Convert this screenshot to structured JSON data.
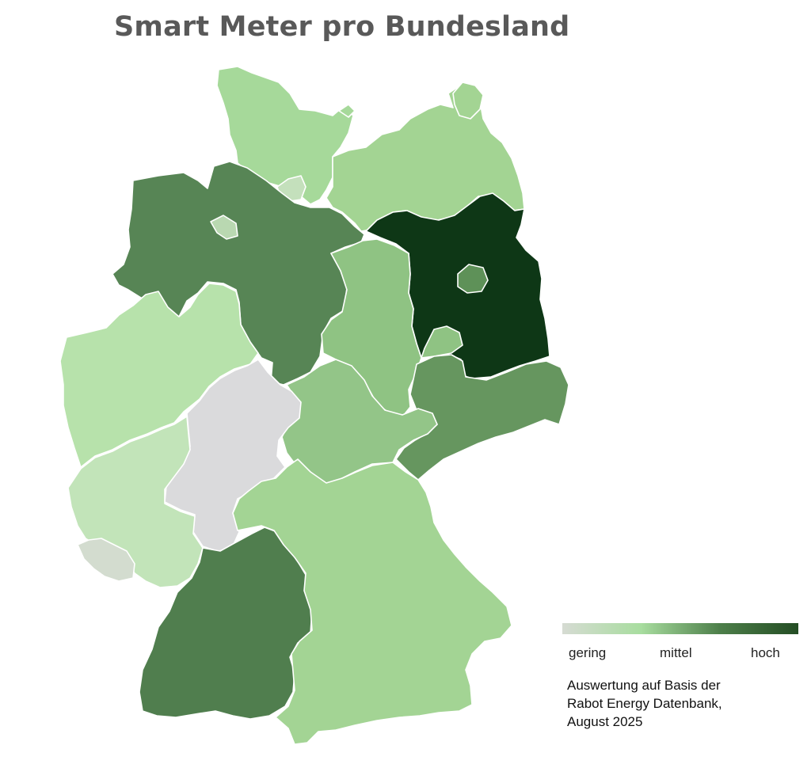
{
  "title": "Smart Meter pro Bundesland",
  "legend": {
    "low_label": "gering",
    "mid_label": "mittel",
    "high_label": "hoch",
    "gradient_colors": [
      "#d6dbd3",
      "#a8dd9f",
      "#4d7f4a",
      "#244d24"
    ]
  },
  "note_lines": [
    "Auswertung auf Basis der",
    "Rabot Energy Datenbank,",
    "August 2025"
  ],
  "states": {
    "schleswig_holstein": {
      "color": "#a6d99a"
    },
    "hamburg": {
      "color": "#c4e0bc"
    },
    "mecklenburg_vorpommern": {
      "color": "#a3d493"
    },
    "niedersachsen": {
      "color": "#578555"
    },
    "bremen": {
      "color": "#b9d8b1"
    },
    "brandenburg": {
      "color": "#0e3716"
    },
    "berlin": {
      "color": "#5e9158"
    },
    "sachsen_anhalt": {
      "color": "#8fc383"
    },
    "nordrhein_westfalen": {
      "color": "#b7e2ab"
    },
    "hessen": {
      "color": "#dadadc"
    },
    "thueringen": {
      "color": "#93c588"
    },
    "sachsen": {
      "color": "#66965f"
    },
    "rheinland_pfalz": {
      "color": "#c2e4b9"
    },
    "saarland": {
      "color": "#d3dccf"
    },
    "baden_wuerttemberg": {
      "color": "#507e4e"
    },
    "bayern": {
      "color": "#a3d494"
    }
  }
}
